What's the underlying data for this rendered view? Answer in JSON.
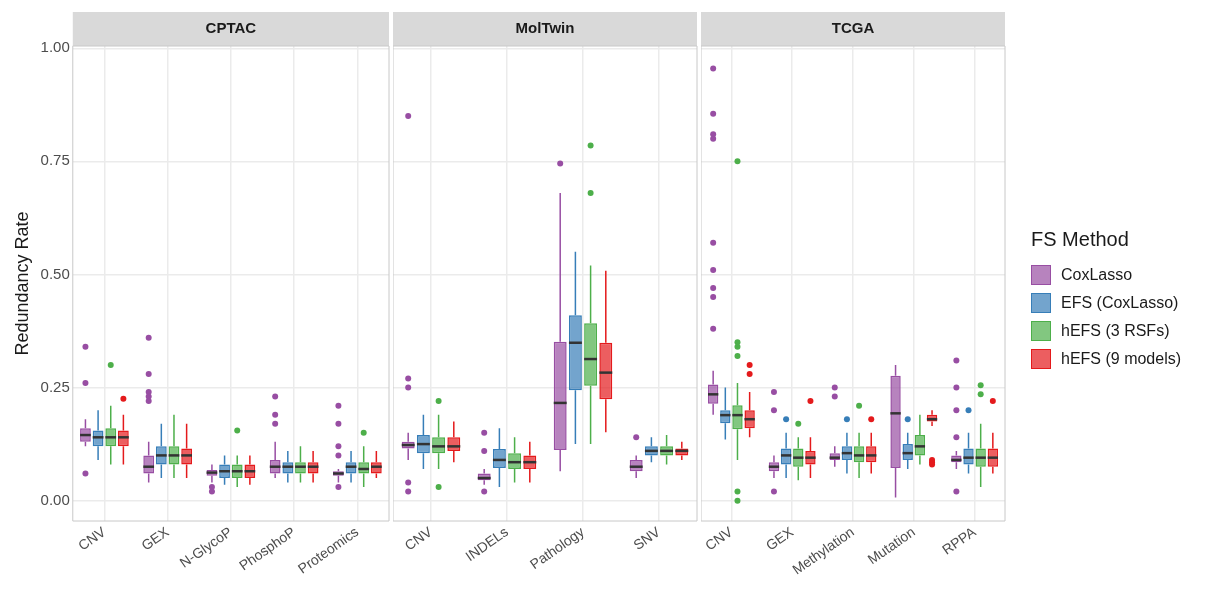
{
  "chart_data": [
    {
      "type": "box",
      "title": "CPTAC",
      "ylabel": "Redundancy Rate",
      "categories": [
        "CNV",
        "GEX",
        "N-GlycoP",
        "PhosphoP",
        "Proteomics"
      ],
      "ylim": [
        -0.045,
        1.005
      ],
      "yticks": [
        {
          "value": 0,
          "label": "0.00"
        },
        {
          "value": 0.25,
          "label": "0.25"
        },
        {
          "value": 0.5,
          "label": "0.50"
        },
        {
          "value": 0.75,
          "label": "0.75"
        },
        {
          "value": 1,
          "label": "1.00"
        }
      ],
      "grid": true,
      "series": [
        {
          "color": "#984ea3",
          "boxes": [
            {
              "low": 0.12,
              "q1": 0.13,
              "median": 0.145,
              "q3": 0.16,
              "high": 0.18,
              "outliers": [
                0.34,
                0.26,
                0.06
              ]
            },
            {
              "low": 0.04,
              "q1": 0.06,
              "median": 0.075,
              "q3": 0.1,
              "high": 0.13,
              "outliers": [
                0.36,
                0.28,
                0.24,
                0.23,
                0.22
              ]
            },
            {
              "low": 0.04,
              "q1": 0.055,
              "median": 0.062,
              "q3": 0.068,
              "high": 0.08,
              "outliers": [
                0.02,
                0.03
              ]
            },
            {
              "low": 0.05,
              "q1": 0.06,
              "median": 0.075,
              "q3": 0.09,
              "high": 0.13,
              "outliers": [
                0.23,
                0.19,
                0.17
              ]
            },
            {
              "low": 0.04,
              "q1": 0.055,
              "median": 0.06,
              "q3": 0.065,
              "high": 0.07,
              "outliers": [
                0.21,
                0.17,
                0.12,
                0.1,
                0.03
              ]
            }
          ]
        },
        {
          "color": "#377eb8",
          "boxes": [
            {
              "low": 0.09,
              "q1": 0.12,
              "median": 0.14,
              "q3": 0.155,
              "high": 0.2
            },
            {
              "low": 0.05,
              "q1": 0.08,
              "median": 0.1,
              "q3": 0.12,
              "high": 0.17
            },
            {
              "low": 0.035,
              "q1": 0.05,
              "median": 0.065,
              "q3": 0.08,
              "high": 0.1
            },
            {
              "low": 0.04,
              "q1": 0.06,
              "median": 0.075,
              "q3": 0.085,
              "high": 0.11
            },
            {
              "low": 0.04,
              "q1": 0.06,
              "median": 0.075,
              "q3": 0.085,
              "high": 0.11
            }
          ]
        },
        {
          "color": "#4daf4a",
          "boxes": [
            {
              "low": 0.08,
              "q1": 0.12,
              "median": 0.14,
              "q3": 0.16,
              "high": 0.21,
              "outliers": [
                0.3
              ]
            },
            {
              "low": 0.05,
              "q1": 0.08,
              "median": 0.1,
              "q3": 0.12,
              "high": 0.19
            },
            {
              "low": 0.03,
              "q1": 0.05,
              "median": 0.065,
              "q3": 0.08,
              "high": 0.1,
              "outliers": [
                0.155
              ]
            },
            {
              "low": 0.04,
              "q1": 0.06,
              "median": 0.075,
              "q3": 0.085,
              "high": 0.12
            },
            {
              "low": 0.03,
              "q1": 0.06,
              "median": 0.07,
              "q3": 0.085,
              "high": 0.12,
              "outliers": [
                0.15
              ]
            }
          ]
        },
        {
          "color": "#e41a1c",
          "boxes": [
            {
              "low": 0.08,
              "q1": 0.12,
              "median": 0.14,
              "q3": 0.155,
              "high": 0.19,
              "outliers": [
                0.225
              ]
            },
            {
              "low": 0.05,
              "q1": 0.08,
              "median": 0.1,
              "q3": 0.115,
              "high": 0.17
            },
            {
              "low": 0.035,
              "q1": 0.05,
              "median": 0.065,
              "q3": 0.08,
              "high": 0.1
            },
            {
              "low": 0.04,
              "q1": 0.06,
              "median": 0.075,
              "q3": 0.085,
              "high": 0.11
            },
            {
              "low": 0.05,
              "q1": 0.06,
              "median": 0.075,
              "q3": 0.085,
              "high": 0.11
            }
          ]
        }
      ]
    },
    {
      "type": "box",
      "title": "MolTwin",
      "categories": [
        "CNV",
        "INDELs",
        "Pathology",
        "SNV"
      ],
      "ylim": [
        -0.045,
        1.005
      ],
      "yticks": [
        0,
        0.25,
        0.5,
        0.75,
        1
      ],
      "grid": true,
      "tick_labels": "x",
      "series": [
        {
          "color": "#984ea3",
          "boxes": [
            {
              "low": 0.09,
              "q1": 0.115,
              "median": 0.123,
              "q3": 0.13,
              "high": 0.15,
              "outliers": [
                0.85,
                0.27,
                0.25,
                0.04,
                0.02
              ]
            },
            {
              "low": 0.035,
              "q1": 0.045,
              "median": 0.05,
              "q3": 0.06,
              "high": 0.07,
              "outliers": [
                0.15,
                0.11,
                0.02
              ]
            },
            {
              "low": 0.065,
              "q1": 0.112,
              "median": 0.216,
              "q3": 0.351,
              "high": 0.68,
              "outliers": [
                0.745
              ]
            },
            {
              "low": 0.05,
              "q1": 0.065,
              "median": 0.075,
              "q3": 0.09,
              "high": 0.1,
              "outliers": [
                0.14
              ]
            }
          ]
        },
        {
          "color": "#377eb8",
          "boxes": [
            {
              "low": 0.07,
              "q1": 0.105,
              "median": 0.125,
              "q3": 0.145,
              "high": 0.19
            },
            {
              "low": 0.03,
              "q1": 0.072,
              "median": 0.09,
              "q3": 0.114,
              "high": 0.16
            },
            {
              "low": 0.125,
              "q1": 0.244,
              "median": 0.349,
              "q3": 0.41,
              "high": 0.55
            },
            {
              "low": 0.085,
              "q1": 0.1,
              "median": 0.11,
              "q3": 0.12,
              "high": 0.14
            }
          ]
        },
        {
          "color": "#4daf4a",
          "boxes": [
            {
              "low": 0.07,
              "q1": 0.105,
              "median": 0.12,
              "q3": 0.14,
              "high": 0.19,
              "outliers": [
                0.22,
                0.03
              ]
            },
            {
              "low": 0.04,
              "q1": 0.07,
              "median": 0.085,
              "q3": 0.105,
              "high": 0.14
            },
            {
              "low": 0.125,
              "q1": 0.254,
              "median": 0.313,
              "q3": 0.392,
              "high": 0.52,
              "outliers": [
                0.785,
                0.68
              ]
            },
            {
              "low": 0.08,
              "q1": 0.1,
              "median": 0.11,
              "q3": 0.12,
              "high": 0.145
            }
          ]
        },
        {
          "color": "#e41a1c",
          "boxes": [
            {
              "low": 0.085,
              "q1": 0.11,
              "median": 0.12,
              "q3": 0.14,
              "high": 0.175
            },
            {
              "low": 0.04,
              "q1": 0.07,
              "median": 0.085,
              "q3": 0.1,
              "high": 0.13
            },
            {
              "low": 0.151,
              "q1": 0.224,
              "median": 0.283,
              "q3": 0.349,
              "high": 0.508
            },
            {
              "low": 0.09,
              "q1": 0.1,
              "median": 0.11,
              "q3": 0.115,
              "high": 0.13
            }
          ]
        }
      ]
    },
    {
      "type": "box",
      "title": "TCGA",
      "categories": [
        "CNV",
        "GEX",
        "Methylation",
        "Mutation",
        "RPPA"
      ],
      "ylim": [
        -0.045,
        1.005
      ],
      "yticks": [
        0,
        0.25,
        0.5,
        0.75,
        1
      ],
      "grid": true,
      "tick_labels": "x",
      "legend": "right",
      "legend_title": "FS Method",
      "series": [
        {
          "name": "CoxLasso",
          "color": "#984ea3",
          "boxes": [
            {
              "low": 0.19,
              "q1": 0.214,
              "median": 0.235,
              "q3": 0.257,
              "high": 0.287,
              "outliers": [
                0.955,
                0.855,
                0.81,
                0.8,
                0.57,
                0.51,
                0.47,
                0.45,
                0.38
              ]
            },
            {
              "low": 0.05,
              "q1": 0.065,
              "median": 0.075,
              "q3": 0.085,
              "high": 0.1,
              "outliers": [
                0.24,
                0.2,
                0.02
              ]
            },
            {
              "low": 0.075,
              "q1": 0.09,
              "median": 0.095,
              "q3": 0.105,
              "high": 0.12,
              "outliers": [
                0.25,
                0.23
              ]
            },
            {
              "low": 0.007,
              "q1": 0.072,
              "median": 0.193,
              "q3": 0.276,
              "high": 0.3
            },
            {
              "low": 0.07,
              "q1": 0.085,
              "median": 0.09,
              "q3": 0.1,
              "high": 0.11,
              "outliers": [
                0.31,
                0.25,
                0.2,
                0.14,
                0.02
              ]
            }
          ]
        },
        {
          "name": "EFS (CoxLasso)",
          "color": "#377eb8",
          "boxes": [
            {
              "low": 0.135,
              "q1": 0.171,
              "median": 0.189,
              "q3": 0.2,
              "high": 0.25
            },
            {
              "low": 0.05,
              "q1": 0.08,
              "median": 0.1,
              "q3": 0.115,
              "high": 0.15,
              "outliers": [
                0.18
              ]
            },
            {
              "low": 0.06,
              "q1": 0.09,
              "median": 0.105,
              "q3": 0.12,
              "high": 0.15,
              "outliers": [
                0.18
              ]
            },
            {
              "low": 0.07,
              "q1": 0.09,
              "median": 0.105,
              "q3": 0.125,
              "high": 0.15,
              "outliers": [
                0.18
              ]
            },
            {
              "low": 0.06,
              "q1": 0.08,
              "median": 0.095,
              "q3": 0.115,
              "high": 0.15,
              "outliers": [
                0.2
              ]
            }
          ]
        },
        {
          "name": "hEFS (3 RSFs)",
          "color": "#4daf4a",
          "boxes": [
            {
              "low": 0.09,
              "q1": 0.158,
              "median": 0.189,
              "q3": 0.211,
              "high": 0.26,
              "outliers": [
                0.75,
                0.35,
                0.34,
                0.32,
                0.02,
                0
              ]
            },
            {
              "low": 0.045,
              "q1": 0.075,
              "median": 0.095,
              "q3": 0.115,
              "high": 0.14,
              "outliers": [
                0.17
              ]
            },
            {
              "low": 0.05,
              "q1": 0.085,
              "median": 0.1,
              "q3": 0.12,
              "high": 0.15,
              "outliers": [
                0.21
              ]
            },
            {
              "low": 0.08,
              "q1": 0.1,
              "median": 0.12,
              "q3": 0.145,
              "high": 0.19
            },
            {
              "low": 0.03,
              "q1": 0.075,
              "median": 0.095,
              "q3": 0.115,
              "high": 0.17,
              "outliers": [
                0.255,
                0.235
              ]
            }
          ]
        },
        {
          "name": "hEFS (9 models)",
          "color": "#e41a1c",
          "boxes": [
            {
              "low": 0.14,
              "q1": 0.16,
              "median": 0.18,
              "q3": 0.2,
              "high": 0.24,
              "outliers": [
                0.3,
                0.28
              ]
            },
            {
              "low": 0.05,
              "q1": 0.08,
              "median": 0.095,
              "q3": 0.11,
              "high": 0.14,
              "outliers": [
                0.22
              ]
            },
            {
              "low": 0.06,
              "q1": 0.085,
              "median": 0.1,
              "q3": 0.12,
              "high": 0.15,
              "outliers": [
                0.18
              ]
            },
            {
              "low": 0.165,
              "q1": 0.175,
              "median": 0.18,
              "q3": 0.19,
              "high": 0.2,
              "outliers": [
                0.09,
                0.085,
                0.08
              ]
            },
            {
              "low": 0.06,
              "q1": 0.075,
              "median": 0.095,
              "q3": 0.115,
              "high": 0.15,
              "outliers": [
                0.22
              ]
            }
          ]
        }
      ]
    }
  ]
}
